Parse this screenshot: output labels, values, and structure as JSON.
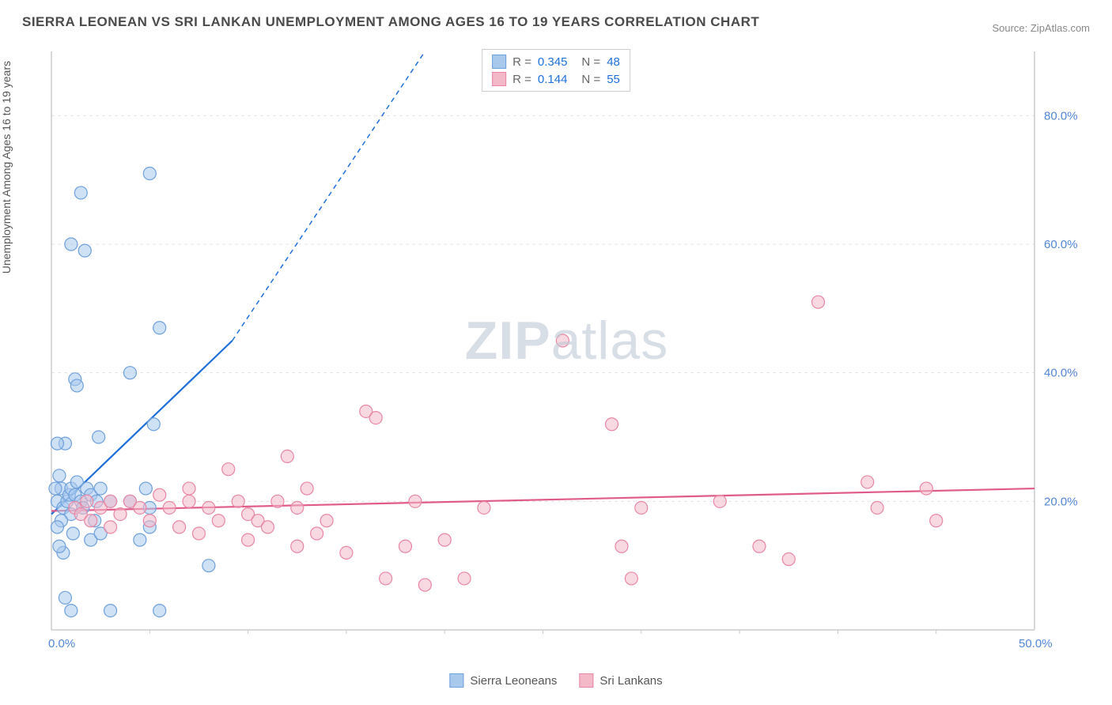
{
  "title": "SIERRA LEONEAN VS SRI LANKAN UNEMPLOYMENT AMONG AGES 16 TO 19 YEARS CORRELATION CHART",
  "source": "Source: ZipAtlas.com",
  "y_axis_label": "Unemployment Among Ages 16 to 19 years",
  "watermark_a": "ZIP",
  "watermark_b": "atlas",
  "chart": {
    "type": "scatter",
    "xlim": [
      0,
      50
    ],
    "ylim": [
      0,
      90
    ],
    "x_ticks": [
      0,
      50
    ],
    "x_tick_labels": [
      "0.0%",
      "50.0%"
    ],
    "y_ticks": [
      20,
      40,
      60,
      80
    ],
    "y_tick_labels": [
      "20.0%",
      "40.0%",
      "60.0%",
      "80.0%"
    ],
    "x_minor_ticks": [
      5,
      10,
      15,
      20,
      25,
      30,
      35,
      40,
      45
    ],
    "background_color": "#ffffff",
    "grid_color": "#e3e3e3",
    "axis_color": "#cccccc",
    "tick_label_color": "#5186d6",
    "marker_radius": 8,
    "marker_opacity": 0.55,
    "series": [
      {
        "name": "Sierra Leoneans",
        "color_fill": "#a8c8ec",
        "color_stroke": "#6ea0db",
        "trend_color": "#1e6fd9",
        "trend": {
          "x1": 0,
          "y1": 18,
          "x2": 9.2,
          "y2": 45,
          "dash_extend_x2": 19,
          "dash_extend_y2": 90
        },
        "R": "0.345",
        "N": "48",
        "points": [
          [
            0.3,
            20
          ],
          [
            0.4,
            24
          ],
          [
            0.5,
            22
          ],
          [
            0.6,
            19
          ],
          [
            0.7,
            29
          ],
          [
            0.8,
            20
          ],
          [
            0.9,
            21
          ],
          [
            1.0,
            22
          ],
          [
            1.0,
            18
          ],
          [
            1.0,
            60
          ],
          [
            1.1,
            15
          ],
          [
            1.2,
            21
          ],
          [
            1.3,
            23
          ],
          [
            1.2,
            39
          ],
          [
            1.3,
            38
          ],
          [
            1.5,
            68
          ],
          [
            1.5,
            20
          ],
          [
            1.6,
            19
          ],
          [
            1.7,
            59
          ],
          [
            1.8,
            22
          ],
          [
            2.0,
            21
          ],
          [
            2.0,
            14
          ],
          [
            2.2,
            17
          ],
          [
            2.3,
            20
          ],
          [
            2.4,
            30
          ],
          [
            2.5,
            15
          ],
          [
            2.5,
            22
          ],
          [
            3.0,
            20
          ],
          [
            3.0,
            3
          ],
          [
            4.0,
            20
          ],
          [
            4.0,
            40
          ],
          [
            4.5,
            14
          ],
          [
            4.8,
            22
          ],
          [
            5.0,
            19
          ],
          [
            5.0,
            16
          ],
          [
            5.0,
            71
          ],
          [
            5.2,
            32
          ],
          [
            5.5,
            47
          ],
          [
            5.5,
            3
          ],
          [
            1.0,
            3
          ],
          [
            0.6,
            12
          ],
          [
            0.5,
            17
          ],
          [
            0.3,
            16
          ],
          [
            0.3,
            29
          ],
          [
            0.2,
            22
          ],
          [
            8.0,
            10
          ],
          [
            0.7,
            5
          ],
          [
            0.4,
            13
          ]
        ]
      },
      {
        "name": "Sri Lankans",
        "color_fill": "#f4b9c9",
        "color_stroke": "#e886a4",
        "trend_color": "#e05b8a",
        "trend": {
          "x1": 0,
          "y1": 18.5,
          "x2": 50,
          "y2": 22
        },
        "R": "0.144",
        "N": "55",
        "points": [
          [
            1.2,
            19
          ],
          [
            1.5,
            18
          ],
          [
            1.8,
            20
          ],
          [
            2.0,
            17
          ],
          [
            2.5,
            19
          ],
          [
            3.0,
            20
          ],
          [
            3.0,
            16
          ],
          [
            3.5,
            18
          ],
          [
            4.0,
            20
          ],
          [
            4.5,
            19
          ],
          [
            5.0,
            17
          ],
          [
            5.5,
            21
          ],
          [
            6.0,
            19
          ],
          [
            6.5,
            16
          ],
          [
            7.0,
            20
          ],
          [
            7.0,
            22
          ],
          [
            7.5,
            15
          ],
          [
            8.0,
            19
          ],
          [
            8.5,
            17
          ],
          [
            9.0,
            25
          ],
          [
            9.5,
            20
          ],
          [
            10.0,
            18
          ],
          [
            10.0,
            14
          ],
          [
            10.5,
            17
          ],
          [
            11.0,
            16
          ],
          [
            11.5,
            20
          ],
          [
            12.0,
            27
          ],
          [
            12.5,
            19
          ],
          [
            13.0,
            22
          ],
          [
            13.5,
            15
          ],
          [
            14.0,
            17
          ],
          [
            15.0,
            12
          ],
          [
            16.0,
            34
          ],
          [
            16.5,
            33
          ],
          [
            17.0,
            8
          ],
          [
            18.0,
            13
          ],
          [
            18.5,
            20
          ],
          [
            19.0,
            7
          ],
          [
            20.0,
            14
          ],
          [
            21.0,
            8
          ],
          [
            22.0,
            19
          ],
          [
            26.0,
            45
          ],
          [
            28.5,
            32
          ],
          [
            29.0,
            13
          ],
          [
            29.5,
            8
          ],
          [
            30.0,
            19
          ],
          [
            34.0,
            20
          ],
          [
            36.0,
            13
          ],
          [
            37.5,
            11
          ],
          [
            39.0,
            51
          ],
          [
            41.5,
            23
          ],
          [
            42.0,
            19
          ],
          [
            44.5,
            22
          ],
          [
            45.0,
            17
          ],
          [
            12.5,
            13
          ]
        ]
      }
    ]
  },
  "r_legend": {
    "r_label": "R =",
    "n_label": "N ="
  },
  "series_legend": {
    "items": [
      "Sierra Leoneans",
      "Sri Lankans"
    ]
  }
}
